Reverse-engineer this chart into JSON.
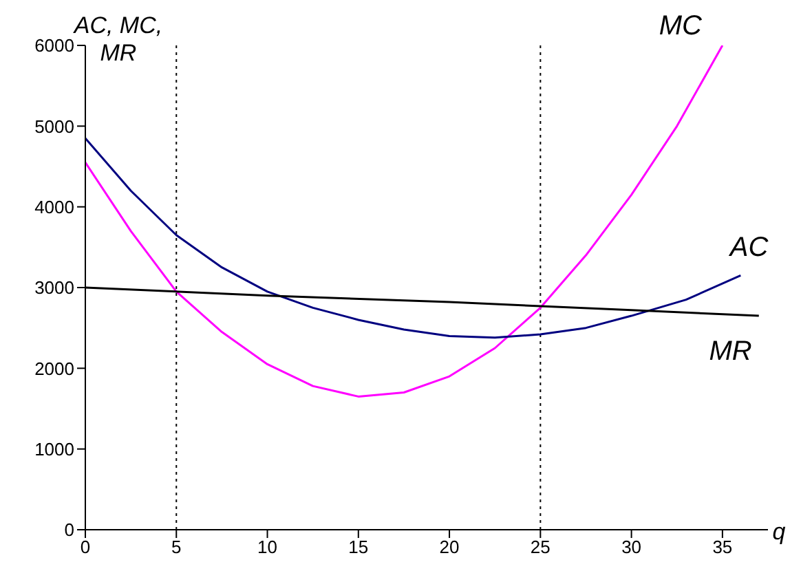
{
  "chart_data": {
    "type": "line",
    "xlabel": "q",
    "ylabel": "AC, MC, MR",
    "xlim": [
      0,
      37.5
    ],
    "xticks": [
      0,
      5,
      10,
      15,
      20,
      25,
      30,
      35
    ],
    "ylim": [
      0,
      6000
    ],
    "yticks": [
      0,
      1000,
      2000,
      3000,
      4000,
      5000,
      6000
    ],
    "grid": false,
    "legend": false,
    "marker": "none",
    "line_style": "solid",
    "series": [
      {
        "name": "MC",
        "color": "#ff00ff",
        "x": [
          0,
          2.5,
          5,
          7.5,
          10,
          12.5,
          15,
          17.5,
          20,
          22.5,
          25,
          27.5,
          30,
          32.5,
          35
        ],
        "values": [
          4550,
          3700,
          2950,
          2450,
          2050,
          1780,
          1650,
          1700,
          1900,
          2250,
          2750,
          3400,
          4150,
          5000,
          6000
        ]
      },
      {
        "name": "AC",
        "color": "#000080",
        "x": [
          0,
          2.5,
          5,
          7.5,
          10,
          12.5,
          15,
          17.5,
          20,
          22.5,
          25,
          27.5,
          30,
          33,
          36
        ],
        "values": [
          4850,
          4200,
          3650,
          3250,
          2950,
          2750,
          2600,
          2480,
          2400,
          2380,
          2420,
          2500,
          2650,
          2850,
          3150
        ]
      },
      {
        "name": "MR",
        "color": "#000000",
        "x": [
          0,
          10,
          20,
          30,
          37
        ],
        "values": [
          3000,
          2900,
          2820,
          2720,
          2650
        ]
      }
    ],
    "ref_lines": [
      {
        "axis": "x",
        "value": 5,
        "color": "#000000",
        "line_style": "dotted"
      },
      {
        "axis": "x",
        "value": 25,
        "color": "#000000",
        "line_style": "dotted"
      }
    ]
  }
}
